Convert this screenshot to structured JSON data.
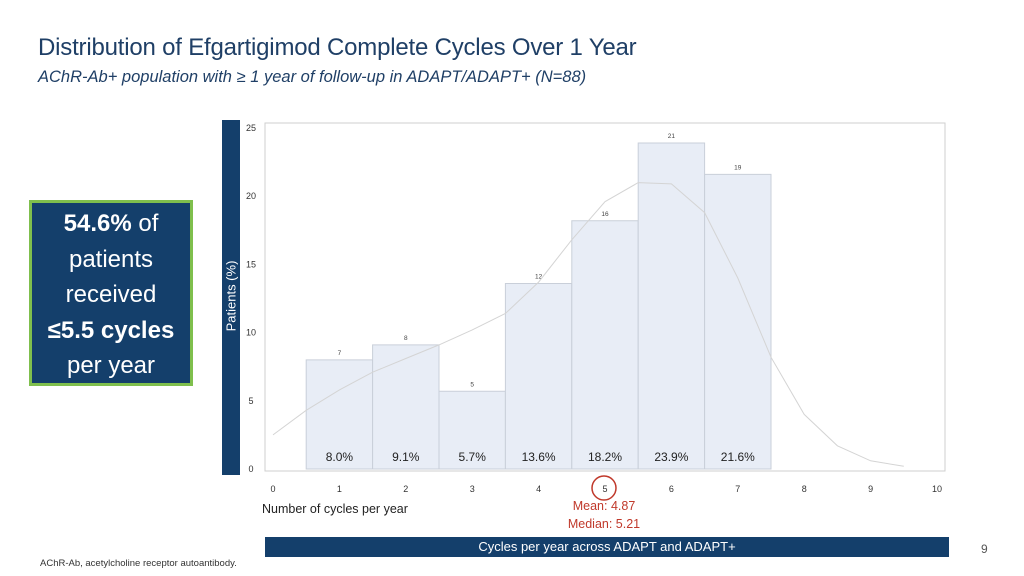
{
  "title": "Distribution of Efgartigimod Complete Cycles Over 1 Year",
  "subtitle": "AChR-Ab+ population with ≥ 1 year of follow-up in ADAPT/ADAPT+ (N=88)",
  "callout": {
    "highlight": "54.6%",
    "line1_rest": " of",
    "line2": "patients",
    "line3": "received",
    "line4_bold": "≤5.5 cycles",
    "line5": "per year"
  },
  "annotations": {
    "mean": "Mean: 4.87",
    "median": "Median: 5.21"
  },
  "footer_bar": "Cycles per year across ADAPT and ADAPT+",
  "page_number": "9",
  "footnote": "AChR-Ab, acetylcholine receptor autoantibody.",
  "colors": {
    "navy": "#143f6b",
    "bar_fill": "#e8edf6",
    "accent_green": "#7fbf4d",
    "accent_red": "#c0392b"
  },
  "chart_data": {
    "type": "bar",
    "title": "",
    "xlabel": "Number of cycles per year",
    "ylabel": "Patients (%)",
    "xlim": [
      0,
      10
    ],
    "ylim": [
      0,
      25
    ],
    "x_ticks": [
      "0",
      "1",
      "2",
      "3",
      "4",
      "5",
      "6",
      "7",
      "8",
      "9",
      "10"
    ],
    "y_ticks": [
      "0",
      "5",
      "10",
      "15",
      "20",
      "25"
    ],
    "bins": [
      [
        0.5,
        1.5
      ],
      [
        1.5,
        2.5
      ],
      [
        2.5,
        3.5
      ],
      [
        3.5,
        4.5
      ],
      [
        4.5,
        5.5
      ],
      [
        5.5,
        6.5
      ],
      [
        6.5,
        7.5
      ]
    ],
    "counts": [
      "7",
      "8",
      "5",
      "12",
      "16",
      "21",
      "19"
    ],
    "values": [
      8.0,
      9.1,
      5.7,
      13.6,
      18.2,
      23.9,
      21.6
    ],
    "value_labels": [
      "8.0%",
      "9.1%",
      "5.7%",
      "13.6%",
      "18.2%",
      "23.9%",
      "21.6%"
    ],
    "density_curve": {
      "x": [
        0,
        0.5,
        1,
        1.5,
        2,
        2.5,
        3,
        3.5,
        4,
        4.5,
        5,
        5.5,
        6,
        6.5,
        7,
        7.5,
        8,
        8.5,
        9,
        9.5
      ],
      "y": [
        2.5,
        4.3,
        5.8,
        7.1,
        8.1,
        9.1,
        10.2,
        11.4,
        13.7,
        16.8,
        19.6,
        21.0,
        20.9,
        18.8,
        14.0,
        8.2,
        4.0,
        1.7,
        0.6,
        0.2
      ]
    },
    "grid": false,
    "legend": "none"
  }
}
